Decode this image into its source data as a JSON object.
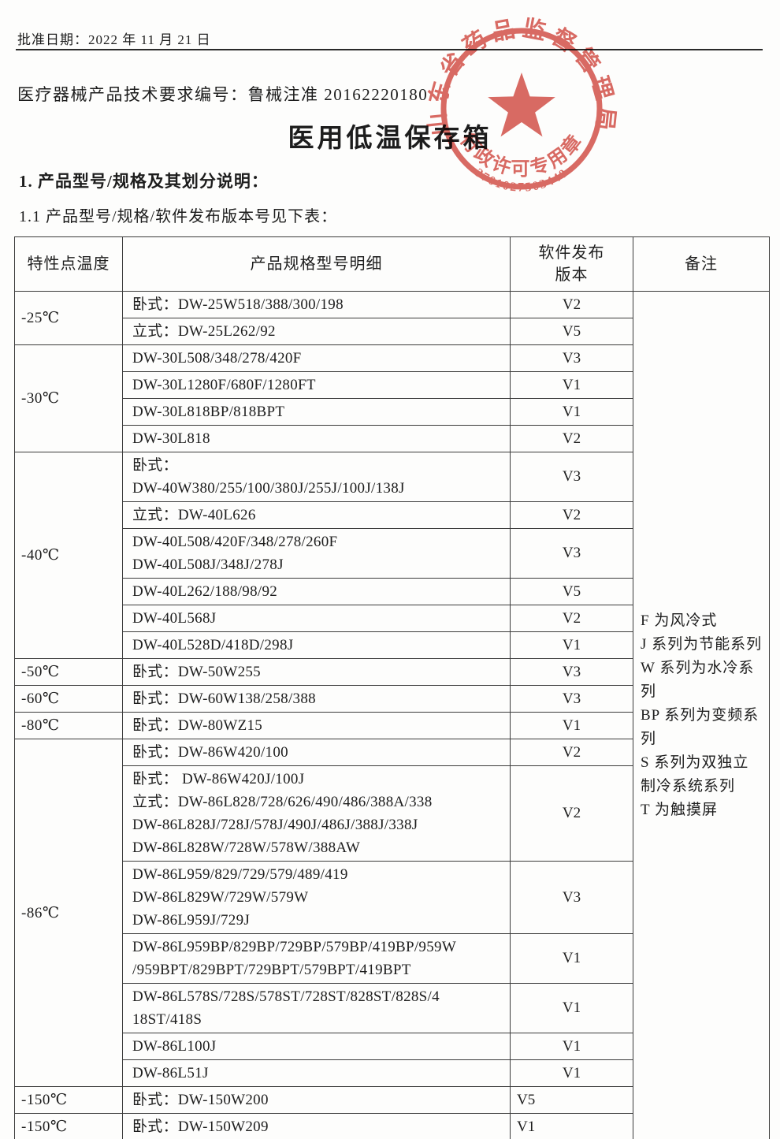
{
  "page": {
    "approval_line": "批准日期：2022 年 11 月 21 日",
    "doc_number_line": "医疗器械产品技术要求编号：鲁械注准 20162220180",
    "title": "医用低温保存箱",
    "section_1": "1. 产品型号/规格及其划分说明：",
    "section_1_1": "1.1 产品型号/规格/软件发布版本号见下表："
  },
  "stamp": {
    "ring_text": "山东省药品监督管理局",
    "bottom_text": "行政许可专用章",
    "serial": "3701027503440",
    "color": "#d24a42",
    "star_icon": "five-pointed-star"
  },
  "table": {
    "headers": [
      "特性点温度",
      "产品规格型号明细",
      "软件发布\n版本",
      "备注"
    ],
    "remark_lines": [
      "F 为风冷式",
      "J 系列为节能系列",
      "W 系列为水冷系列",
      "BP 系列为变频系列",
      "S 系列为双独立制冷系统系列",
      "T 为触摸屏"
    ],
    "groups": [
      {
        "temp": "-25℃",
        "rows": [
          {
            "model": [
              "卧式：DW-25W518/388/300/198"
            ],
            "version": "V2"
          },
          {
            "model": [
              "立式：DW-25L262/92"
            ],
            "version": "V5"
          }
        ]
      },
      {
        "temp": "-30℃",
        "rows": [
          {
            "model": [
              "DW-30L508/348/278/420F"
            ],
            "version": "V3"
          },
          {
            "model": [
              "DW-30L1280F/680F/1280FT"
            ],
            "version": "V1"
          },
          {
            "model": [
              "DW-30L818BP/818BPT"
            ],
            "version": "V1"
          },
          {
            "model": [
              "DW-30L818"
            ],
            "version": "V2"
          }
        ]
      },
      {
        "temp": "-40℃",
        "rows": [
          {
            "model": [
              "卧式：",
              "DW-40W380/255/100/380J/255J/100J/138J"
            ],
            "version": "V3"
          },
          {
            "model": [
              "立式：DW-40L626"
            ],
            "version": "V2"
          },
          {
            "model": [
              "DW-40L508/420F/348/278/260F",
              "DW-40L508J/348J/278J"
            ],
            "version": "V3"
          },
          {
            "model": [
              "DW-40L262/188/98/92"
            ],
            "version": "V5"
          },
          {
            "model": [
              "DW-40L568J"
            ],
            "version": "V2"
          },
          {
            "model": [
              "DW-40L528D/418D/298J"
            ],
            "version": "V1"
          }
        ]
      },
      {
        "temp": "-50℃",
        "rows": [
          {
            "model": [
              "卧式：DW-50W255"
            ],
            "version": "V3"
          }
        ]
      },
      {
        "temp": "-60℃",
        "rows": [
          {
            "model": [
              "卧式：DW-60W138/258/388"
            ],
            "version": "V3"
          }
        ]
      },
      {
        "temp": "-80℃",
        "rows": [
          {
            "model": [
              "卧式：DW-80WZ15"
            ],
            "version": "V1"
          }
        ]
      },
      {
        "temp": "-86℃",
        "rows": [
          {
            "model": [
              "卧式：DW-86W420/100"
            ],
            "version": "V2"
          },
          {
            "model": [
              "卧式： DW-86W420J/100J",
              "立式：DW-86L828/728/626/490/486/388A/338",
              "DW-86L828J/728J/578J/490J/486J/388J/338J",
              "DW-86L828W/728W/578W/388AW"
            ],
            "version": "V2"
          },
          {
            "model": [
              "DW-86L959/829/729/579/489/419",
              "DW-86L829W/729W/579W",
              "DW-86L959J/729J"
            ],
            "version": "V3"
          },
          {
            "model": [
              "DW-86L959BP/829BP/729BP/579BP/419BP/959W",
              "/959BPT/829BPT/729BPT/579BPT/419BPT"
            ],
            "version": "V1"
          },
          {
            "model": [
              "DW-86L578S/728S/578ST/728ST/828ST/828S/4",
              "18ST/418S"
            ],
            "version": "V1"
          },
          {
            "model": [
              "DW-86L100J"
            ],
            "version": "V1"
          },
          {
            "model": [
              "DW-86L51J"
            ],
            "version": "V1"
          }
        ]
      },
      {
        "temp": "-150℃",
        "rows": [
          {
            "model": [
              "卧式：DW-150W200"
            ],
            "version": "V5",
            "version_align": "left"
          }
        ]
      },
      {
        "temp": "-150℃",
        "rows": [
          {
            "model": [
              "卧式：DW-150W209"
            ],
            "version": "V1",
            "version_align": "left"
          }
        ]
      }
    ]
  }
}
